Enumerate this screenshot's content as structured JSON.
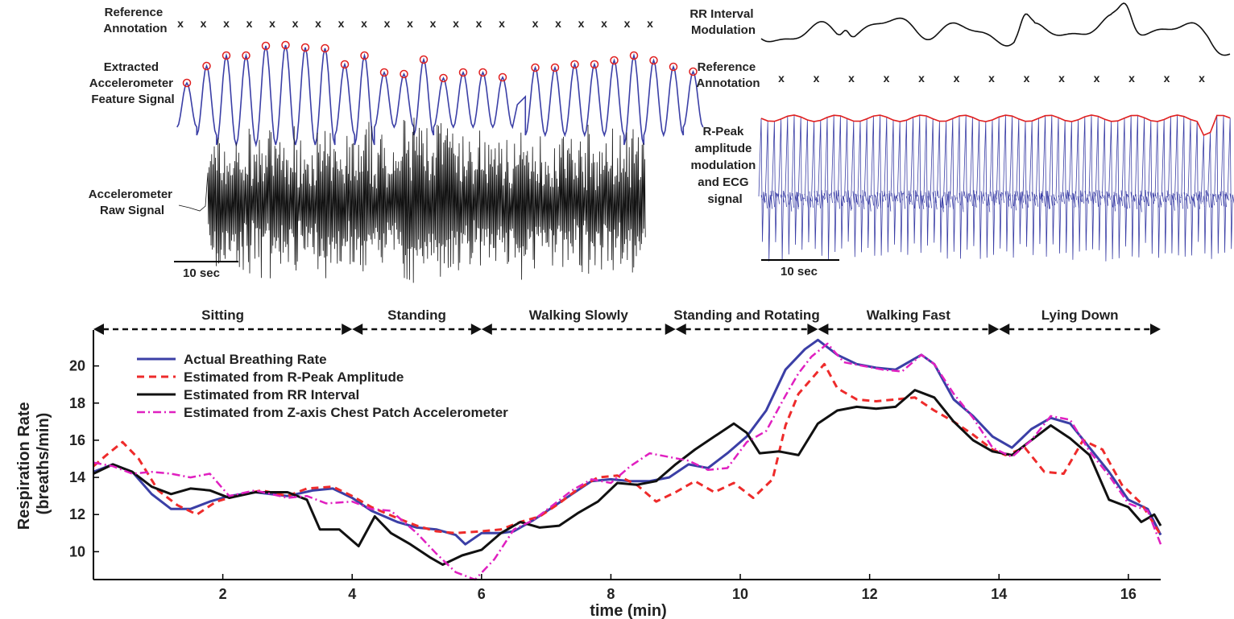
{
  "panels": {
    "accel": {
      "reference_label": [
        "Reference",
        "Annotation"
      ],
      "feature_label": [
        "Extracted",
        "Accelerometer",
        "Feature Signal"
      ],
      "raw_label": [
        "Accelerometer",
        "Raw Signal"
      ],
      "scale_label": "10 sec",
      "marker": "x",
      "annotation_count": 21
    },
    "ecg": {
      "rr_label": [
        "RR Interval",
        "Modulation"
      ],
      "reference_label": [
        "Reference",
        "Annotation"
      ],
      "ecg_label": [
        "R-Peak",
        "amplitude",
        "modulation",
        "and ECG",
        "signal"
      ],
      "scale_label": "10 sec",
      "marker": "x",
      "annotation_count": 13
    }
  },
  "colors": {
    "actual": "#3b3fa6",
    "rpeak": "#ee2b2b",
    "rr": "#111111",
    "zaxis": "#e020c0",
    "ecg_wave": "#3b3fa6",
    "envelope": "#e02020",
    "peak_circle": "#e02020"
  },
  "chart_data": {
    "type": "line",
    "xlabel": "time (min)",
    "ylabel": [
      "Respiration Rate",
      "(breaths/min)"
    ],
    "xlim": [
      0,
      16.5
    ],
    "ylim": [
      8.5,
      21.5
    ],
    "xticks": [
      2,
      4,
      6,
      8,
      10,
      12,
      14,
      16
    ],
    "yticks": [
      10,
      12,
      14,
      16,
      18,
      20
    ],
    "activities": [
      {
        "label": "Sitting",
        "start": 0,
        "end": 4
      },
      {
        "label": "Standing",
        "start": 4,
        "end": 6
      },
      {
        "label": "Walking Slowly",
        "start": 6,
        "end": 9
      },
      {
        "label": "Standing and Rotating",
        "start": 9,
        "end": 11.2
      },
      {
        "label": "Walking Fast",
        "start": 11.2,
        "end": 14
      },
      {
        "label": "Lying Down",
        "start": 14,
        "end": 16.5
      }
    ],
    "legend_position": "top-left",
    "series": [
      {
        "key": "actual",
        "name": "Actual Breathing Rate",
        "style": "solid",
        "width": 3,
        "points": [
          [
            0,
            14.3
          ],
          [
            0.3,
            14.7
          ],
          [
            0.6,
            14.3
          ],
          [
            0.9,
            13.1
          ],
          [
            1.2,
            12.3
          ],
          [
            1.5,
            12.3
          ],
          [
            1.8,
            12.7
          ],
          [
            2.1,
            13.0
          ],
          [
            2.5,
            13.2
          ],
          [
            3.0,
            13.0
          ],
          [
            3.4,
            13.3
          ],
          [
            3.7,
            13.4
          ],
          [
            4.0,
            12.9
          ],
          [
            4.3,
            12.2
          ],
          [
            4.7,
            11.6
          ],
          [
            5.0,
            11.3
          ],
          [
            5.3,
            11.2
          ],
          [
            5.6,
            10.9
          ],
          [
            5.75,
            10.4
          ],
          [
            6.0,
            11.0
          ],
          [
            6.3,
            11.0
          ],
          [
            6.5,
            11.1
          ],
          [
            6.8,
            11.7
          ],
          [
            7.1,
            12.4
          ],
          [
            7.4,
            13.1
          ],
          [
            7.7,
            13.8
          ],
          [
            8.0,
            13.9
          ],
          [
            8.3,
            13.8
          ],
          [
            8.6,
            13.8
          ],
          [
            8.9,
            14.0
          ],
          [
            9.2,
            14.7
          ],
          [
            9.5,
            14.5
          ],
          [
            9.8,
            15.3
          ],
          [
            10.1,
            16.2
          ],
          [
            10.4,
            17.6
          ],
          [
            10.7,
            19.8
          ],
          [
            11.0,
            20.9
          ],
          [
            11.2,
            21.4
          ],
          [
            11.5,
            20.6
          ],
          [
            11.8,
            20.1
          ],
          [
            12.1,
            19.9
          ],
          [
            12.4,
            19.8
          ],
          [
            12.8,
            20.6
          ],
          [
            13.0,
            20.1
          ],
          [
            13.3,
            18.2
          ],
          [
            13.6,
            17.3
          ],
          [
            13.9,
            16.2
          ],
          [
            14.2,
            15.6
          ],
          [
            14.5,
            16.6
          ],
          [
            14.8,
            17.2
          ],
          [
            15.1,
            16.9
          ],
          [
            15.4,
            15.6
          ],
          [
            15.7,
            14.3
          ],
          [
            16.0,
            12.8
          ],
          [
            16.3,
            12.3
          ],
          [
            16.5,
            10.9
          ]
        ]
      },
      {
        "key": "rpeak",
        "name": "Estimated from R-Peak Amplitude",
        "style": "dashed",
        "width": 3,
        "points": [
          [
            0,
            14.6
          ],
          [
            0.2,
            15.2
          ],
          [
            0.45,
            15.9
          ],
          [
            0.7,
            15.0
          ],
          [
            1.0,
            13.3
          ],
          [
            1.3,
            12.5
          ],
          [
            1.6,
            12.0
          ],
          [
            1.9,
            12.7
          ],
          [
            2.2,
            13.0
          ],
          [
            2.6,
            13.3
          ],
          [
            3.0,
            13.0
          ],
          [
            3.3,
            13.4
          ],
          [
            3.7,
            13.5
          ],
          [
            4.0,
            13.0
          ],
          [
            4.3,
            12.4
          ],
          [
            4.7,
            11.8
          ],
          [
            5.0,
            11.4
          ],
          [
            5.3,
            11.1
          ],
          [
            5.6,
            11.0
          ],
          [
            6.0,
            11.1
          ],
          [
            6.3,
            11.2
          ],
          [
            6.6,
            11.6
          ],
          [
            6.9,
            11.9
          ],
          [
            7.2,
            12.6
          ],
          [
            7.5,
            13.4
          ],
          [
            7.8,
            14.0
          ],
          [
            8.1,
            14.1
          ],
          [
            8.4,
            13.6
          ],
          [
            8.7,
            12.7
          ],
          [
            9.0,
            13.2
          ],
          [
            9.3,
            13.8
          ],
          [
            9.6,
            13.2
          ],
          [
            9.9,
            13.7
          ],
          [
            10.2,
            12.9
          ],
          [
            10.5,
            13.9
          ],
          [
            10.7,
            16.8
          ],
          [
            10.9,
            18.5
          ],
          [
            11.1,
            19.3
          ],
          [
            11.3,
            20.1
          ],
          [
            11.5,
            18.8
          ],
          [
            11.8,
            18.2
          ],
          [
            12.1,
            18.1
          ],
          [
            12.4,
            18.2
          ],
          [
            12.7,
            18.3
          ],
          [
            13.0,
            17.6
          ],
          [
            13.3,
            17.0
          ],
          [
            13.6,
            16.3
          ],
          [
            13.9,
            15.5
          ],
          [
            14.1,
            15.2
          ],
          [
            14.4,
            15.6
          ],
          [
            14.7,
            14.3
          ],
          [
            15.0,
            14.2
          ],
          [
            15.3,
            16.0
          ],
          [
            15.6,
            15.5
          ],
          [
            15.9,
            13.6
          ],
          [
            16.2,
            12.6
          ],
          [
            16.5,
            10.9
          ]
        ]
      },
      {
        "key": "rr",
        "name": "Estimated from RR Interval",
        "style": "solid",
        "width": 3,
        "points": [
          [
            0,
            14.2
          ],
          [
            0.3,
            14.7
          ],
          [
            0.6,
            14.3
          ],
          [
            0.9,
            13.5
          ],
          [
            1.2,
            13.1
          ],
          [
            1.5,
            13.4
          ],
          [
            1.8,
            13.3
          ],
          [
            2.1,
            12.9
          ],
          [
            2.5,
            13.2
          ],
          [
            3.0,
            13.2
          ],
          [
            3.3,
            12.8
          ],
          [
            3.5,
            11.2
          ],
          [
            3.8,
            11.2
          ],
          [
            4.1,
            10.3
          ],
          [
            4.35,
            11.9
          ],
          [
            4.6,
            11.0
          ],
          [
            4.9,
            10.4
          ],
          [
            5.2,
            9.7
          ],
          [
            5.4,
            9.3
          ],
          [
            5.7,
            9.8
          ],
          [
            6.0,
            10.1
          ],
          [
            6.3,
            11.0
          ],
          [
            6.6,
            11.6
          ],
          [
            6.9,
            11.3
          ],
          [
            7.2,
            11.4
          ],
          [
            7.5,
            12.1
          ],
          [
            7.8,
            12.7
          ],
          [
            8.1,
            13.7
          ],
          [
            8.4,
            13.6
          ],
          [
            8.7,
            13.8
          ],
          [
            9.0,
            14.7
          ],
          [
            9.3,
            15.5
          ],
          [
            9.6,
            16.2
          ],
          [
            9.9,
            16.9
          ],
          [
            10.1,
            16.4
          ],
          [
            10.3,
            15.3
          ],
          [
            10.6,
            15.4
          ],
          [
            10.9,
            15.2
          ],
          [
            11.2,
            16.9
          ],
          [
            11.5,
            17.6
          ],
          [
            11.8,
            17.8
          ],
          [
            12.1,
            17.7
          ],
          [
            12.4,
            17.8
          ],
          [
            12.7,
            18.7
          ],
          [
            13.0,
            18.3
          ],
          [
            13.3,
            17.0
          ],
          [
            13.6,
            16.0
          ],
          [
            13.9,
            15.4
          ],
          [
            14.2,
            15.2
          ],
          [
            14.5,
            16.0
          ],
          [
            14.8,
            16.8
          ],
          [
            15.1,
            16.1
          ],
          [
            15.4,
            15.2
          ],
          [
            15.7,
            12.8
          ],
          [
            16.0,
            12.4
          ],
          [
            16.2,
            11.6
          ],
          [
            16.4,
            12.0
          ],
          [
            16.5,
            11.4
          ]
        ]
      },
      {
        "key": "zaxis",
        "name": "Estimated from Z-axis Chest Patch Accelerometer",
        "style": "dashdot",
        "width": 2.5,
        "points": [
          [
            0,
            14.8
          ],
          [
            0.3,
            14.6
          ],
          [
            0.6,
            14.2
          ],
          [
            0.9,
            14.3
          ],
          [
            1.2,
            14.2
          ],
          [
            1.5,
            14.0
          ],
          [
            1.8,
            14.2
          ],
          [
            2.1,
            13.0
          ],
          [
            2.5,
            13.3
          ],
          [
            3.0,
            12.9
          ],
          [
            3.3,
            13.0
          ],
          [
            3.6,
            12.6
          ],
          [
            4.0,
            12.7
          ],
          [
            4.3,
            12.3
          ],
          [
            4.6,
            12.2
          ],
          [
            5.0,
            11.0
          ],
          [
            5.3,
            9.9
          ],
          [
            5.6,
            8.9
          ],
          [
            5.9,
            8.5
          ],
          [
            6.2,
            9.6
          ],
          [
            6.5,
            11.2
          ],
          [
            6.8,
            11.7
          ],
          [
            7.1,
            12.5
          ],
          [
            7.4,
            13.3
          ],
          [
            7.7,
            13.9
          ],
          [
            8.0,
            13.7
          ],
          [
            8.3,
            14.6
          ],
          [
            8.6,
            15.3
          ],
          [
            8.9,
            15.1
          ],
          [
            9.2,
            14.9
          ],
          [
            9.5,
            14.4
          ],
          [
            9.8,
            14.5
          ],
          [
            10.1,
            15.9
          ],
          [
            10.4,
            16.5
          ],
          [
            10.7,
            18.4
          ],
          [
            10.9,
            19.6
          ],
          [
            11.1,
            20.5
          ],
          [
            11.35,
            21.2
          ],
          [
            11.6,
            20.2
          ],
          [
            11.9,
            20.0
          ],
          [
            12.2,
            19.8
          ],
          [
            12.5,
            19.7
          ],
          [
            12.8,
            20.6
          ],
          [
            13.0,
            20.1
          ],
          [
            13.3,
            18.5
          ],
          [
            13.6,
            17.2
          ],
          [
            13.9,
            15.6
          ],
          [
            14.2,
            15.1
          ],
          [
            14.5,
            16.0
          ],
          [
            14.8,
            17.3
          ],
          [
            15.1,
            17.1
          ],
          [
            15.4,
            15.4
          ],
          [
            15.7,
            14.1
          ],
          [
            16.0,
            12.6
          ],
          [
            16.3,
            12.2
          ],
          [
            16.5,
            10.4
          ]
        ]
      }
    ]
  }
}
